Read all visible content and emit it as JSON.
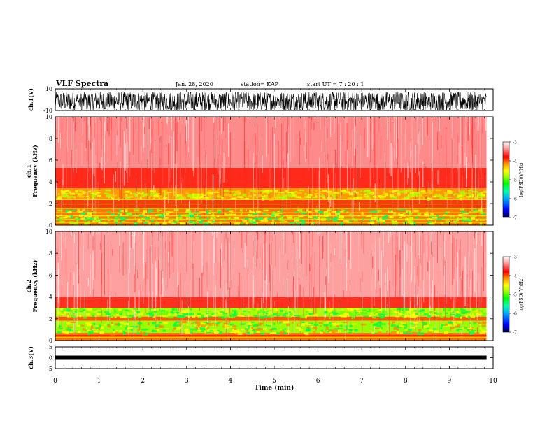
{
  "header": {
    "title": "VLF Spectra",
    "date": "Jan. 28, 2020",
    "station": "station= KAP",
    "start_ut": "start  UT =   7 : 20 : 1"
  },
  "colors": {
    "colorbar": [
      "#000066",
      "#0000ff",
      "#00aaff",
      "#00ffaa",
      "#00ff00",
      "#aaff00",
      "#ffff00",
      "#ff8800",
      "#ff0000",
      "#ff4444",
      "#ffaaaa",
      "#ffffff"
    ],
    "background": "#ffffff",
    "ink": "#000000"
  },
  "chart_data": [
    {
      "type": "line",
      "panel": "ch1",
      "ylabel": "ch.1(V)",
      "ylim": [
        -10,
        10
      ],
      "yticks": [
        "10",
        "-10"
      ],
      "xlim": [
        0,
        10
      ],
      "description_series": "dense broadband waveform oscillating roughly between -10 and 7 V"
    },
    {
      "type": "heatmap",
      "panel": "ch1-spectrogram",
      "ylabel": "ch.1\nFrequency  (kHz)",
      "ylim": [
        0,
        10
      ],
      "yticks": [
        "0",
        "2",
        "4",
        "6",
        "8",
        "10"
      ],
      "xlim": [
        0,
        10
      ],
      "bands": [
        {
          "f_range": [
            5.3,
            10
          ],
          "level": "light red/white"
        },
        {
          "f_range": [
            3.3,
            5.3
          ],
          "level": "red"
        },
        {
          "f_range": [
            2.4,
            3.3
          ],
          "level": "orange/yellow"
        },
        {
          "f_range": [
            1.5,
            2.4
          ],
          "level": "red/orange with yellow lines"
        },
        {
          "f_range": [
            0,
            1.5
          ],
          "level": "orange/yellow/green lines"
        }
      ],
      "colorbar": {
        "label": "log(PSD)(V²/Hz)",
        "ticks": [
          "-3",
          "-4",
          "-5",
          "-6",
          "-7"
        ],
        "range": [
          -7,
          -3
        ]
      }
    },
    {
      "type": "heatmap",
      "panel": "ch2-spectrogram",
      "ylabel": "ch.2\nFrequency  (kHz)",
      "ylim": [
        0,
        10
      ],
      "yticks": [
        "0",
        "2",
        "4",
        "6",
        "8",
        "10"
      ],
      "xlim": [
        0,
        10
      ],
      "bands": [
        {
          "f_range": [
            4,
            10
          ],
          "level": "light red/white"
        },
        {
          "f_range": [
            3,
            4
          ],
          "level": "red"
        },
        {
          "f_range": [
            2.2,
            3
          ],
          "level": "green/yellow"
        },
        {
          "f_range": [
            1.8,
            2.2
          ],
          "level": "red/orange"
        },
        {
          "f_range": [
            0.7,
            1.8
          ],
          "level": "green/yellow"
        },
        {
          "f_range": [
            0,
            0.7
          ],
          "level": "red/orange"
        }
      ],
      "colorbar": {
        "label": "log(PSD)(V²/Hz)",
        "ticks": [
          "-3",
          "-4",
          "-5",
          "-6",
          "-7"
        ],
        "range": [
          -7,
          -3
        ]
      }
    },
    {
      "type": "line",
      "panel": "ch3",
      "ylabel": "ch.3(V)",
      "ylim": [
        -5,
        5
      ],
      "yticks": [
        "5",
        "0",
        "-5"
      ],
      "xlim": [
        0,
        10
      ],
      "description_series": "flat thick trace near 0 V"
    }
  ],
  "xaxis": {
    "label": "Time  (min)",
    "ticks": [
      "0",
      "1",
      "2",
      "3",
      "4",
      "5",
      "6",
      "7",
      "8",
      "9",
      "10"
    ],
    "range": [
      0,
      10
    ],
    "data_end": 9.85
  }
}
